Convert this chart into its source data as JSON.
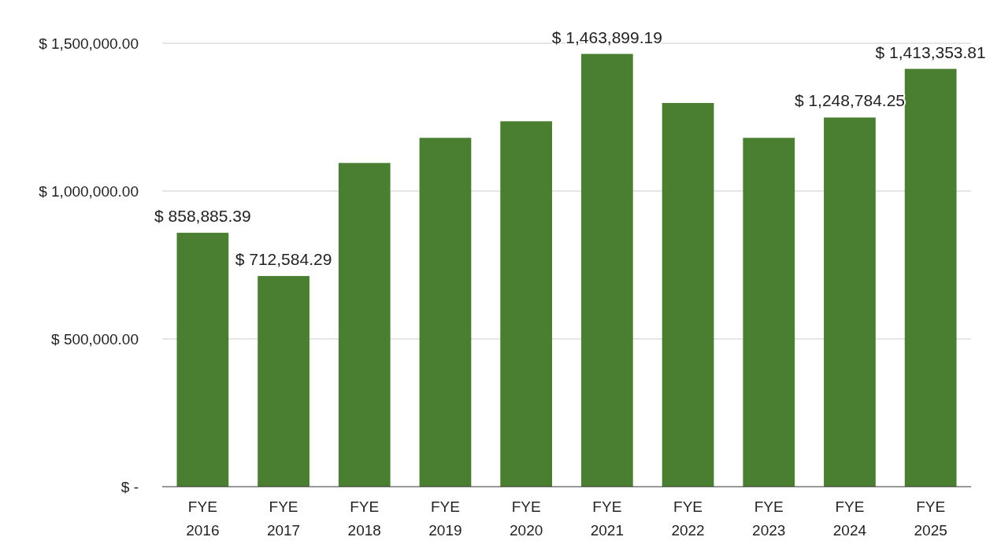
{
  "chart_data": {
    "type": "bar",
    "categories": [
      "FYE 2016",
      "FYE 2017",
      "FYE 2018",
      "FYE 2019",
      "FYE 2020",
      "FYE 2021",
      "FYE 2022",
      "FYE 2023",
      "FYE 2024",
      "FYE 2025"
    ],
    "values": [
      858885.39,
      712584.29,
      1095000,
      1180000,
      1236000,
      1463899.19,
      1298000,
      1180000,
      1248784.25,
      1413353.81
    ],
    "value_labels": [
      "$ 858,885.39",
      "$ 712,584.29",
      null,
      null,
      null,
      "$ 1,463,899.19",
      null,
      null,
      "$ 1,248,784.25",
      "$ 1,413,353.81"
    ],
    "color": "#4a7f32",
    "ylim": [
      0,
      1500000
    ],
    "yticks": [
      {
        "value": 0,
        "label": "$ -"
      },
      {
        "value": 500000,
        "label": "$ 500,000.00"
      },
      {
        "value": 1000000,
        "label": "$ 1,000,000.00"
      },
      {
        "value": 1500000,
        "label": "$ 1,500,000.00"
      }
    ],
    "grid": "y"
  }
}
